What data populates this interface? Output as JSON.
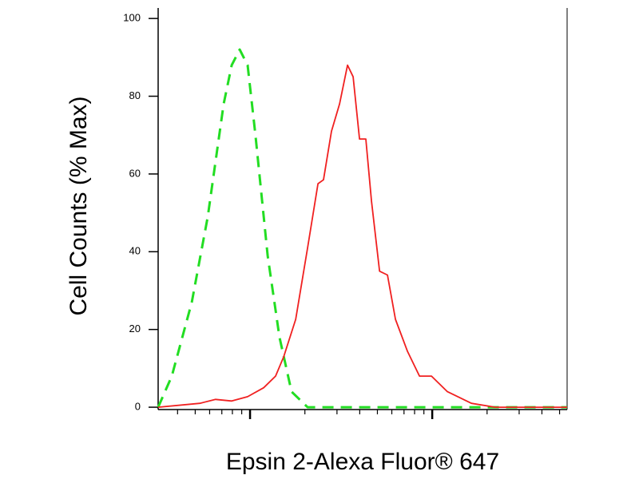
{
  "chart_data": {
    "type": "line",
    "x_label": "Epsin 2-Alexa Fluor® 647",
    "y_label": "Cell Counts (% Max)",
    "xscale": "log",
    "xlim": [
      31.3,
      5500
    ],
    "ylim": [
      -0.6,
      102.7
    ],
    "xticks": [
      40,
      50,
      60,
      70,
      80,
      90,
      100,
      200,
      300,
      400,
      500,
      600,
      700,
      800,
      900,
      1000,
      2000,
      3000,
      4000,
      5000
    ],
    "yticks": [
      0,
      20,
      40,
      60,
      80,
      100
    ],
    "series": [
      {
        "color": "#22dd22",
        "line_style": "dashed",
        "x": [
          31.3,
          37.2,
          47.9,
          58.6,
          71.6,
          79.3,
          87.7,
          97.0,
          107,
          124.9,
          145,
          169,
          207,
          5500
        ],
        "values": [
          0,
          8,
          27,
          49,
          78,
          88,
          92,
          88,
          70,
          39,
          18,
          4,
          0,
          0
        ]
      },
      {
        "color": "#f02020",
        "line_style": "solid",
        "x": [
          31.3,
          53,
          64.7,
          79.3,
          97,
          118.8,
          138,
          153,
          178,
          207,
          236,
          253,
          280,
          310,
          343,
          368,
          399,
          432,
          464,
          514,
          568,
          628,
          731,
          851,
          991,
          1211,
          1641,
          2218,
          5500
        ],
        "values": [
          0,
          1,
          2,
          1.6,
          2.7,
          5,
          8,
          13,
          22.6,
          41,
          57.5,
          58.5,
          71,
          78,
          88,
          85,
          69,
          69,
          53,
          35,
          34,
          22.6,
          14.4,
          8,
          8,
          4,
          1,
          0,
          0
        ]
      }
    ]
  }
}
